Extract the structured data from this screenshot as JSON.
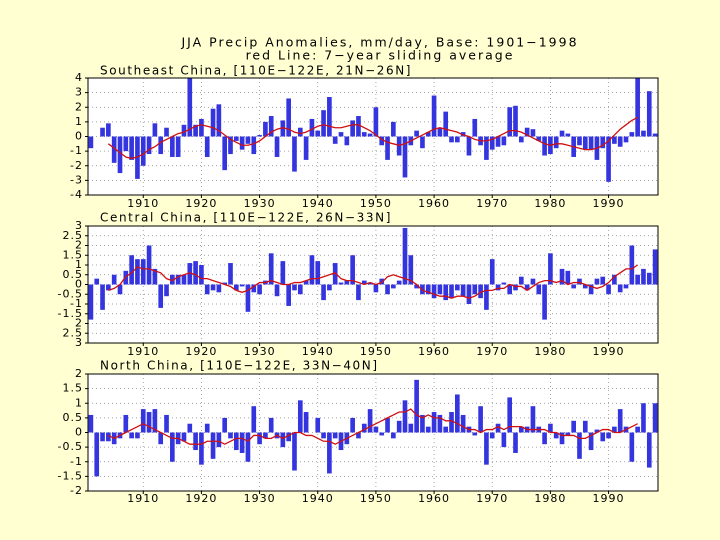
{
  "title": "JJA Precip Anomalies, mm/day, Base: 1901−1998",
  "subtitle": "red Line: 7−year sliding average",
  "chart_data": [
    {
      "type": "bar",
      "title": "Southeast China, [110E−122E, 21N−26N]",
      "x": [
        1901,
        1902,
        1903,
        1904,
        1905,
        1906,
        1907,
        1908,
        1909,
        1910,
        1911,
        1912,
        1913,
        1914,
        1915,
        1916,
        1917,
        1918,
        1919,
        1920,
        1921,
        1922,
        1923,
        1924,
        1925,
        1926,
        1927,
        1928,
        1929,
        1930,
        1931,
        1932,
        1933,
        1934,
        1935,
        1936,
        1937,
        1938,
        1939,
        1940,
        1941,
        1942,
        1943,
        1944,
        1945,
        1946,
        1947,
        1948,
        1949,
        1950,
        1951,
        1952,
        1953,
        1954,
        1955,
        1956,
        1957,
        1958,
        1959,
        1960,
        1961,
        1962,
        1963,
        1964,
        1965,
        1966,
        1967,
        1968,
        1969,
        1970,
        1971,
        1972,
        1973,
        1974,
        1975,
        1976,
        1977,
        1978,
        1979,
        1980,
        1981,
        1982,
        1983,
        1984,
        1985,
        1986,
        1987,
        1988,
        1989,
        1990,
        1991,
        1992,
        1993,
        1994,
        1995,
        1996,
        1997,
        1998
      ],
      "xlim": [
        1900.5,
        1998.5
      ],
      "xticks": [
        1910,
        1920,
        1930,
        1940,
        1950,
        1960,
        1970,
        1980,
        1990
      ],
      "ylim": [
        -4,
        4
      ],
      "yticks": [
        4,
        3,
        2,
        1,
        0,
        -1,
        -2,
        -3,
        -4
      ],
      "grid": true,
      "series": [
        {
          "type": "bar",
          "color": "#3535e0",
          "values": [
            -0.8,
            0,
            0.6,
            0.9,
            -1.8,
            -2.5,
            -1.0,
            -1.6,
            -2.9,
            -2.0,
            -1.2,
            0.9,
            -1.2,
            0.6,
            -1.4,
            -1.4,
            0.8,
            4.0,
            0.8,
            1.2,
            -1.4,
            1.9,
            2.2,
            -2.3,
            -1.2,
            -0.3,
            -0.9,
            -0.5,
            -1.2,
            0.1,
            1.0,
            1.4,
            -1.4,
            1.1,
            2.6,
            -2.4,
            0.6,
            -1.6,
            1.2,
            0.4,
            1.8,
            2.7,
            -0.5,
            0.3,
            -0.6,
            1.1,
            1.4,
            0.3,
            0.2,
            2.0,
            -0.6,
            -1.6,
            1.0,
            -1.3,
            -2.8,
            -0.6,
            0.4,
            -0.8,
            0.3,
            2.8,
            0.6,
            1.7,
            -0.4,
            -0.4,
            0.3,
            -1.3,
            1.2,
            -0.6,
            -1.6,
            -0.9,
            -0.7,
            -0.6,
            2.0,
            2.1,
            -0.4,
            0.6,
            0.5,
            -0.3,
            -1.3,
            -1.2,
            -0.8,
            0.4,
            0.2,
            -1.4,
            -0.6,
            -0.9,
            -0.9,
            -1.6,
            -0.8,
            -3.1,
            -0.5,
            -0.7,
            -0.4,
            0.3,
            4.0,
            0.4,
            3.1,
            0.2
          ]
        },
        {
          "type": "line",
          "color": "#d01010",
          "values": [
            null,
            null,
            null,
            -0.5,
            -0.8,
            -1.1,
            -1.4,
            -1.5,
            -1.4,
            -1.2,
            -0.9,
            -0.7,
            -0.4,
            -0.2,
            0,
            0.2,
            0.3,
            0.5,
            0.7,
            0.8,
            0.7,
            0.6,
            0.4,
            0.1,
            -0.2,
            -0.4,
            -0.6,
            -0.6,
            -0.5,
            -0.3,
            0,
            0.3,
            0.5,
            0.6,
            0.5,
            0.3,
            0.2,
            0.3,
            0.5,
            0.7,
            0.8,
            0.7,
            0.6,
            0.6,
            0.7,
            0.8,
            0.8,
            0.6,
            0.4,
            0.1,
            -0.2,
            -0.4,
            -0.5,
            -0.6,
            -0.5,
            -0.3,
            -0.1,
            0.1,
            0.3,
            0.5,
            0.6,
            0.5,
            0.4,
            0.3,
            0.1,
            0,
            -0.2,
            -0.3,
            -0.3,
            -0.2,
            0,
            0.2,
            0.4,
            0.4,
            0.3,
            0.1,
            -0.1,
            -0.3,
            -0.5,
            -0.6,
            -0.5,
            -0.5,
            -0.6,
            -0.7,
            -0.8,
            -0.9,
            -0.9,
            -0.8,
            -0.6,
            -0.3,
            0.1,
            0.5,
            0.8,
            1.1,
            1.3,
            null,
            null,
            null
          ]
        }
      ]
    },
    {
      "type": "bar",
      "title": "Central China, [110E−122E, 26N−33N]",
      "x": [
        1901,
        1902,
        1903,
        1904,
        1905,
        1906,
        1907,
        1908,
        1909,
        1910,
        1911,
        1912,
        1913,
        1914,
        1915,
        1916,
        1917,
        1918,
        1919,
        1920,
        1921,
        1922,
        1923,
        1924,
        1925,
        1926,
        1927,
        1928,
        1929,
        1930,
        1931,
        1932,
        1933,
        1934,
        1935,
        1936,
        1937,
        1938,
        1939,
        1940,
        1941,
        1942,
        1943,
        1944,
        1945,
        1946,
        1947,
        1948,
        1949,
        1950,
        1951,
        1952,
        1953,
        1954,
        1955,
        1956,
        1957,
        1958,
        1959,
        1960,
        1961,
        1962,
        1963,
        1964,
        1965,
        1966,
        1967,
        1968,
        1969,
        1970,
        1971,
        1972,
        1973,
        1974,
        1975,
        1976,
        1977,
        1978,
        1979,
        1980,
        1981,
        1982,
        1983,
        1984,
        1985,
        1986,
        1987,
        1988,
        1989,
        1990,
        1991,
        1992,
        1993,
        1994,
        1995,
        1996,
        1997,
        1998
      ],
      "xlim": [
        1900.5,
        1998.5
      ],
      "xticks": [
        1910,
        1920,
        1930,
        1940,
        1950,
        1960,
        1970,
        1980,
        1990
      ],
      "ylim": [
        -3,
        3
      ],
      "yticks": [
        3,
        2.5,
        2,
        1.5,
        1,
        0.5,
        0,
        -0.5,
        -1,
        -1.5,
        {
          "value": -2,
          "label": "2"
        },
        {
          "value": -2.5,
          "label": "2.5"
        },
        {
          "value": -3,
          "label": "3"
        }
      ],
      "grid": true,
      "series": [
        {
          "type": "bar",
          "color": "#3535e0",
          "values": [
            -1.8,
            0.3,
            -1.3,
            -0.3,
            0.5,
            -0.5,
            0.7,
            1.5,
            1.3,
            1.3,
            2.0,
            0.8,
            -1.2,
            -0.6,
            0.5,
            0.5,
            0.5,
            1.1,
            1.2,
            1.0,
            -0.5,
            -0.3,
            -0.4,
            0.1,
            1.1,
            -0.3,
            -0.1,
            -1.4,
            -0.4,
            -0.5,
            0.2,
            1.6,
            -0.6,
            1.2,
            -1.1,
            -0.3,
            -0.5,
            0.2,
            1.5,
            1.2,
            -0.8,
            -0.3,
            1.1,
            0.1,
            0.2,
            1.5,
            -0.8,
            0.2,
            0.1,
            -0.4,
            0.3,
            -0.5,
            -0.2,
            0.2,
            2.9,
            1.5,
            -0.2,
            -0.5,
            -0.5,
            -0.7,
            -0.5,
            -0.8,
            -0.7,
            -0.3,
            -0.6,
            -1.0,
            -0.5,
            -0.7,
            -1.3,
            1.3,
            -0.3,
            0.1,
            -0.5,
            -0.3,
            0.4,
            -0.3,
            0.3,
            -0.5,
            -1.8,
            1.6,
            0,
            0.8,
            0.7,
            -0.2,
            0.3,
            -0.2,
            -0.5,
            0.3,
            0.4,
            -0.5,
            0.5,
            -0.4,
            -0.2,
            2.0,
            0.5,
            0.8,
            0.6,
            1.8
          ]
        },
        {
          "type": "line",
          "color": "#d01010",
          "values": [
            null,
            null,
            null,
            -0.3,
            -0.2,
            0,
            0.4,
            0.6,
            0.9,
            0.8,
            0.8,
            0.7,
            0.6,
            0.3,
            0.2,
            0.4,
            0.5,
            0.6,
            0.5,
            0.3,
            0.3,
            0.2,
            0.1,
            0,
            -0.1,
            -0.3,
            -0.4,
            -0.3,
            -0.1,
            0.1,
            0.1,
            0.2,
            0.1,
            0,
            0,
            0.1,
            0.1,
            0.2,
            0.3,
            0.3,
            0.4,
            0.5,
            0.6,
            0.3,
            0.2,
            0.2,
            0.1,
            0,
            0.1,
            0,
            0.1,
            0.4,
            0.5,
            0.4,
            0.3,
            0.2,
            0,
            -0.3,
            -0.4,
            -0.5,
            -0.6,
            -0.6,
            -0.7,
            -0.6,
            -0.6,
            -0.7,
            -0.6,
            -0.4,
            -0.3,
            -0.3,
            -0.2,
            -0.2,
            0,
            -0.1,
            -0.1,
            -0.3,
            -0.1,
            0.1,
            0.2,
            0.2,
            0.1,
            0.2,
            0,
            0.1,
            0.1,
            0,
            -0.1,
            -0.2,
            -0.1,
            0.1,
            0.4,
            0.6,
            0.8,
            0.8,
            1.0,
            null,
            null,
            null
          ]
        }
      ]
    },
    {
      "type": "bar",
      "title": "North China, [110E−122E, 33N−40N]",
      "x": [
        1901,
        1902,
        1903,
        1904,
        1905,
        1906,
        1907,
        1908,
        1909,
        1910,
        1911,
        1912,
        1913,
        1914,
        1915,
        1916,
        1917,
        1918,
        1919,
        1920,
        1921,
        1922,
        1923,
        1924,
        1925,
        1926,
        1927,
        1928,
        1929,
        1930,
        1931,
        1932,
        1933,
        1934,
        1935,
        1936,
        1937,
        1938,
        1939,
        1940,
        1941,
        1942,
        1943,
        1944,
        1945,
        1946,
        1947,
        1948,
        1949,
        1950,
        1951,
        1952,
        1953,
        1954,
        1955,
        1956,
        1957,
        1958,
        1959,
        1960,
        1961,
        1962,
        1963,
        1964,
        1965,
        1966,
        1967,
        1968,
        1969,
        1970,
        1971,
        1972,
        1973,
        1974,
        1975,
        1976,
        1977,
        1978,
        1979,
        1980,
        1981,
        1982,
        1983,
        1984,
        1985,
        1986,
        1987,
        1988,
        1989,
        1990,
        1991,
        1992,
        1993,
        1994,
        1995,
        1996,
        1997,
        1998
      ],
      "xlim": [
        1900.5,
        1998.5
      ],
      "xticks": [
        1910,
        1920,
        1930,
        1940,
        1950,
        1960,
        1970,
        1980,
        1990
      ],
      "ylim": [
        -2,
        2
      ],
      "yticks": [
        2,
        1.5,
        1,
        0.5,
        0,
        -0.5,
        -1,
        -1.5,
        -2
      ],
      "grid": true,
      "series": [
        {
          "type": "bar",
          "color": "#3535e0",
          "values": [
            0.6,
            -1.5,
            -0.3,
            -0.3,
            -0.4,
            -0.2,
            0.6,
            -0.2,
            -0.2,
            0.8,
            0.7,
            0.8,
            -0.4,
            0.6,
            -1.0,
            -0.4,
            -0.3,
            0.3,
            -0.6,
            -1.1,
            0.3,
            -0.9,
            -0.5,
            0.5,
            -0.2,
            -0.6,
            -0.7,
            -1.0,
            0.9,
            -0.4,
            -0.2,
            0.5,
            -0.2,
            -0.5,
            -0.3,
            -1.3,
            1.1,
            0.7,
            0,
            0.5,
            -0.2,
            -1.4,
            -0.2,
            -0.6,
            -0.4,
            0.5,
            -0.2,
            0.3,
            0.8,
            0.2,
            -0.1,
            0.5,
            -0.2,
            0.4,
            1.1,
            0.3,
            1.8,
            0.6,
            0.2,
            0.7,
            0.6,
            0.2,
            0.7,
            1.3,
            0.6,
            0.2,
            -0.1,
            0.9,
            -1.1,
            -0.2,
            0.3,
            -0.5,
            1.2,
            -0.7,
            0.2,
            0.2,
            0.9,
            0.2,
            -0.4,
            0.3,
            -0.2,
            -0.4,
            -0.1,
            0.4,
            -0.9,
            0.4,
            -0.6,
            0.1,
            -0.3,
            -0.2,
            0.2,
            0.8,
            0.2,
            -1.0,
            0.2,
            1.0,
            -1.2,
            1.0
          ]
        },
        {
          "type": "line",
          "color": "#d01010",
          "values": [
            null,
            null,
            null,
            -0.1,
            -0.2,
            -0.1,
            0,
            0.1,
            0.2,
            0.3,
            0.2,
            0.1,
            0,
            -0.1,
            -0.2,
            -0.2,
            -0.3,
            -0.4,
            -0.4,
            -0.4,
            -0.3,
            -0.3,
            -0.3,
            -0.4,
            -0.3,
            -0.2,
            -0.2,
            -0.3,
            -0.1,
            -0.1,
            -0.2,
            -0.2,
            -0.1,
            -0.2,
            -0.1,
            0,
            0,
            -0.1,
            -0.1,
            -0.2,
            -0.3,
            -0.3,
            -0.4,
            -0.3,
            -0.2,
            -0.1,
            0,
            0.1,
            0.2,
            0.3,
            0.4,
            0.5,
            0.6,
            0.7,
            0.7,
            0.8,
            0.6,
            0.5,
            0.6,
            0.5,
            0.5,
            0.4,
            0.4,
            0.3,
            0.2,
            0.1,
            0.1,
            0,
            0.1,
            0.1,
            0.2,
            0.1,
            0.2,
            0.2,
            0.2,
            0.1,
            0.1,
            0.1,
            0.1,
            0,
            0,
            -0.1,
            -0.1,
            -0.1,
            -0.2,
            -0.2,
            -0.1,
            0,
            0.1,
            0.1,
            0,
            0,
            0.1,
            0.2,
            0.3,
            null,
            null,
            null
          ]
        }
      ]
    }
  ]
}
